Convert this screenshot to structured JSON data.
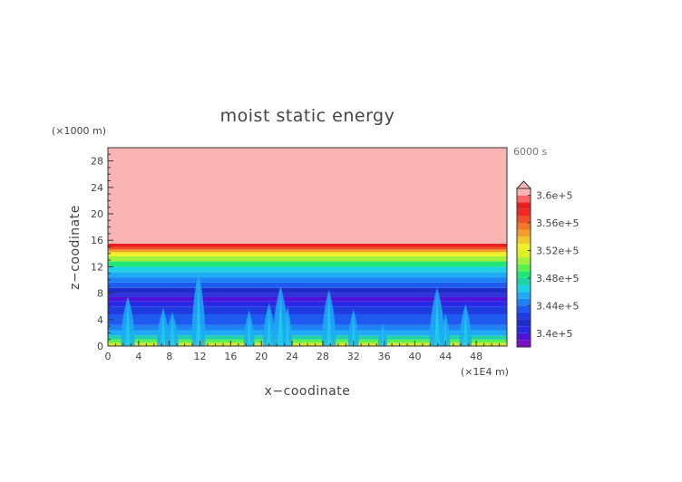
{
  "chart_data": {
    "type": "heatmap",
    "title": "moist static energy",
    "xlabel": "x−coodinate",
    "ylabel": "z−coodinate",
    "x_unit": "(×1E4 m)",
    "y_unit": "(×1000 m)",
    "time_label": "6000 s",
    "xlim": [
      0,
      52
    ],
    "ylim": [
      0,
      30
    ],
    "x_ticks": [
      0,
      4,
      8,
      12,
      16,
      20,
      24,
      28,
      32,
      36,
      40,
      44,
      48
    ],
    "y_ticks": [
      0,
      4,
      8,
      12,
      16,
      20,
      24,
      28
    ],
    "colorbar": {
      "levels": [
        338000.0,
        339000.0,
        340000.0,
        341000.0,
        342000.0,
        343000.0,
        344000.0,
        345000.0,
        346000.0,
        347000.0,
        348000.0,
        349000.0,
        350000.0,
        351000.0,
        352000.0,
        353000.0,
        354000.0,
        355000.0,
        356000.0,
        357000.0,
        358000.0,
        359000.0,
        360000.0,
        361000.0
      ],
      "colors": [
        "#7a12c4",
        "#5012d8",
        "#2828e6",
        "#1e2cc8",
        "#1e3ce0",
        "#1e5af0",
        "#1e82f5",
        "#1eaaf5",
        "#1ed2e6",
        "#1ed2aa",
        "#1ee678",
        "#5af050",
        "#a0f03c",
        "#dcf028",
        "#f0f028",
        "#f0c828",
        "#f0a028",
        "#f07828",
        "#f05028",
        "#f02828",
        "#e61e1e",
        "#fa6464",
        "#fab4b4"
      ],
      "tick_values": [
        340000.0,
        344000.0,
        348000.0,
        352000.0,
        356000.0,
        360000.0
      ],
      "tick_labels": [
        "3.4e+5",
        "3.44e+5",
        "3.48e+5",
        "3.52e+5",
        "3.56e+5",
        "3.6e+5"
      ]
    },
    "layers": [
      {
        "z": [
          0,
          0.5
        ],
        "color": "#d2e628"
      },
      {
        "z": [
          0.5,
          1.0
        ],
        "color": "#5af050"
      },
      {
        "z": [
          1.0,
          1.6
        ],
        "color": "#1ed2aa"
      },
      {
        "z": [
          1.6,
          2.4
        ],
        "color": "#1eaaf5"
      },
      {
        "z": [
          2.4,
          3.2
        ],
        "color": "#1e82f5"
      },
      {
        "z": [
          3.2,
          4.8
        ],
        "color": "#1e5af0"
      },
      {
        "z": [
          4.8,
          6.0
        ],
        "color": "#1e3ce0"
      },
      {
        "z": [
          6.0,
          6.8
        ],
        "color": "#2828e6"
      },
      {
        "z": [
          6.8,
          7.4
        ],
        "color": "#5012d8"
      },
      {
        "z": [
          7.4,
          8.0
        ],
        "color": "#3232dc"
      },
      {
        "z": [
          8.0,
          8.8
        ],
        "color": "#1e2cc8"
      },
      {
        "z": [
          8.8,
          9.6
        ],
        "color": "#1e5af0"
      },
      {
        "z": [
          9.6,
          10.4
        ],
        "color": "#1e82f5"
      },
      {
        "z": [
          10.4,
          11.2
        ],
        "color": "#1eaaf5"
      },
      {
        "z": [
          11.2,
          12.0
        ],
        "color": "#1ed2e6"
      },
      {
        "z": [
          12.0,
          12.8
        ],
        "color": "#1ee678"
      },
      {
        "z": [
          12.8,
          13.6
        ],
        "color": "#a0f03c"
      },
      {
        "z": [
          13.6,
          14.2
        ],
        "color": "#f0f028"
      },
      {
        "z": [
          14.2,
          14.6
        ],
        "color": "#f0a028"
      },
      {
        "z": [
          14.6,
          15.0
        ],
        "color": "#f05028"
      },
      {
        "z": [
          15.0,
          15.5
        ],
        "color": "#e61e1e"
      },
      {
        "z": [
          15.5,
          30.0
        ],
        "color": "#fab4b4"
      }
    ],
    "plumes": [
      {
        "x": 2.6,
        "top": 7.5,
        "width": 0.9
      },
      {
        "x": 7.2,
        "top": 5.8,
        "width": 0.8
      },
      {
        "x": 8.4,
        "top": 5.2,
        "width": 0.8
      },
      {
        "x": 11.8,
        "top": 11.0,
        "width": 0.9
      },
      {
        "x": 18.4,
        "top": 5.5,
        "width": 0.7
      },
      {
        "x": 21.0,
        "top": 6.5,
        "width": 0.8
      },
      {
        "x": 22.5,
        "top": 9.0,
        "width": 1.0
      },
      {
        "x": 23.4,
        "top": 6.0,
        "width": 0.6
      },
      {
        "x": 28.8,
        "top": 8.5,
        "width": 0.9
      },
      {
        "x": 32.0,
        "top": 5.6,
        "width": 0.7
      },
      {
        "x": 35.8,
        "top": 3.5,
        "width": 0.6
      },
      {
        "x": 42.9,
        "top": 8.8,
        "width": 1.0
      },
      {
        "x": 44.0,
        "top": 5.0,
        "width": 0.6
      },
      {
        "x": 46.6,
        "top": 6.4,
        "width": 0.8
      }
    ]
  }
}
